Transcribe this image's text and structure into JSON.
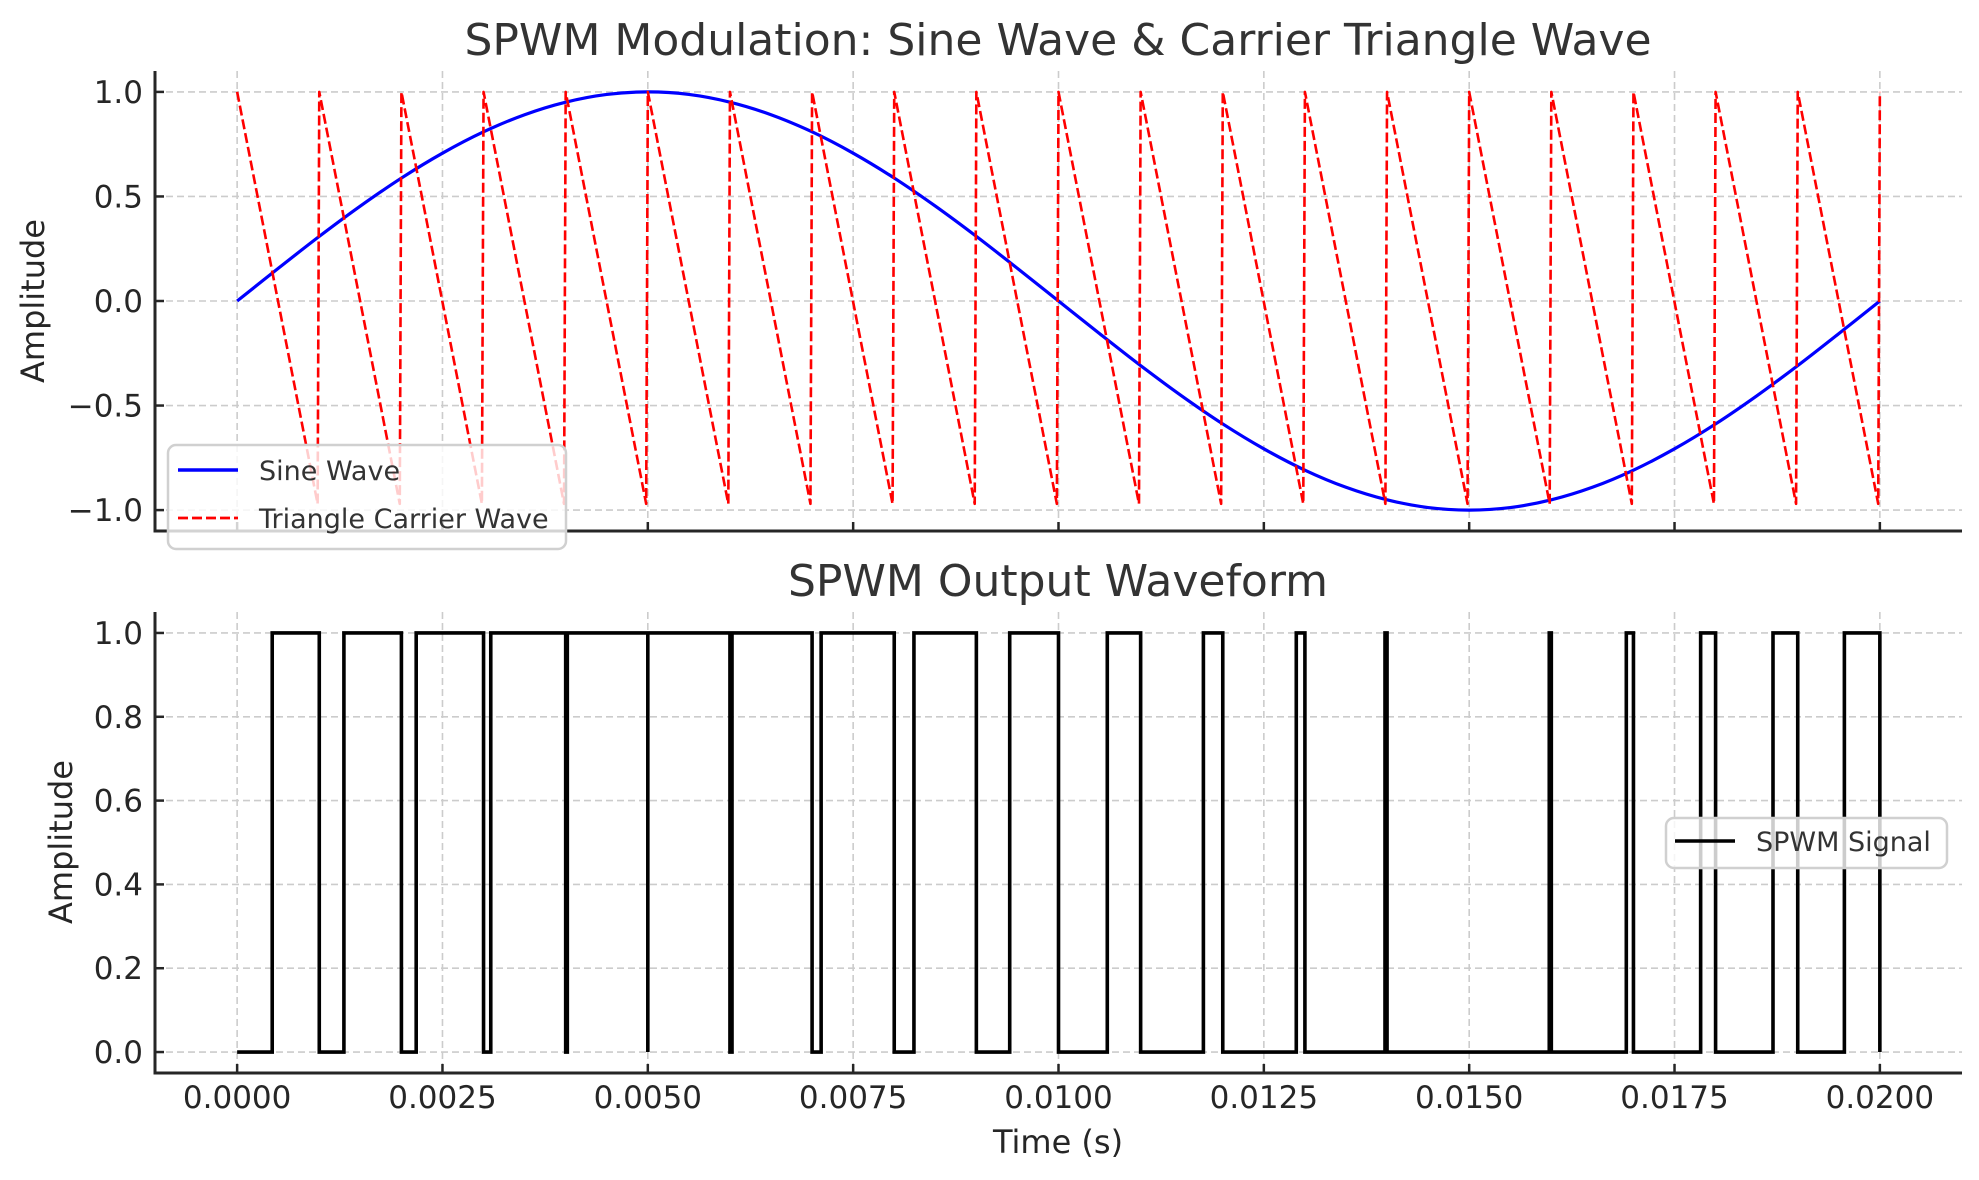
{
  "figure": {
    "background": "#ffffff"
  },
  "chart_data": [
    {
      "type": "line",
      "title": "SPWM Modulation: Sine Wave & Carrier Triangle Wave",
      "xlabel": "",
      "ylabel": "Amplitude",
      "xlim": [
        -0.001,
        0.021
      ],
      "ylim": [
        -1.1,
        1.1
      ],
      "grid": true,
      "legend_position": "lower-left",
      "xticks": [
        0.0,
        0.0025,
        0.005,
        0.0075,
        0.01,
        0.0125,
        0.015,
        0.0175,
        0.02
      ],
      "xtick_labels_visible": false,
      "yticks": [
        -1.0,
        -0.5,
        0.0,
        0.5,
        1.0
      ],
      "ytick_labels": [
        "−1.0",
        "−0.5",
        "0.0",
        "0.5",
        "1.0"
      ],
      "series": [
        {
          "name": "Sine Wave",
          "color": "#0000ff",
          "style": "solid",
          "x": [
            0.0,
            0.0005,
            0.001,
            0.0015,
            0.002,
            0.0025,
            0.003,
            0.0035,
            0.004,
            0.0045,
            0.005,
            0.0055,
            0.006,
            0.0065,
            0.007,
            0.0075,
            0.008,
            0.0085,
            0.009,
            0.0095,
            0.01,
            0.0105,
            0.011,
            0.0115,
            0.012,
            0.0125,
            0.013,
            0.0135,
            0.014,
            0.0145,
            0.015,
            0.0155,
            0.016,
            0.0165,
            0.017,
            0.0175,
            0.018,
            0.0185,
            0.019,
            0.0195,
            0.02
          ],
          "y": [
            0.0,
            0.156,
            0.309,
            0.454,
            0.588,
            0.707,
            0.809,
            0.891,
            0.951,
            0.988,
            1.0,
            0.988,
            0.951,
            0.891,
            0.809,
            0.707,
            0.588,
            0.454,
            0.309,
            0.156,
            0.0,
            -0.156,
            -0.309,
            -0.454,
            -0.588,
            -0.707,
            -0.809,
            -0.891,
            -0.951,
            -0.988,
            -1.0,
            -0.988,
            -0.951,
            -0.891,
            -0.809,
            -0.707,
            -0.588,
            -0.454,
            -0.309,
            -0.156,
            0.0
          ]
        },
        {
          "name": "Triangle Carrier Wave",
          "color": "#ff0000",
          "style": "dashed",
          "points": [
            [
              0.0,
              1.0
            ],
            [
              0.00098,
              -0.97
            ],
            [
              0.001,
              1.0
            ],
            [
              0.00198,
              -0.97
            ],
            [
              0.002,
              1.0
            ],
            [
              0.00298,
              -0.97
            ],
            [
              0.003,
              1.0
            ],
            [
              0.00398,
              -0.97
            ],
            [
              0.004,
              1.0
            ],
            [
              0.00498,
              -0.97
            ],
            [
              0.005,
              1.0
            ],
            [
              0.00598,
              -0.97
            ],
            [
              0.006,
              1.0
            ],
            [
              0.00698,
              -0.97
            ],
            [
              0.007,
              1.0
            ],
            [
              0.00798,
              -0.97
            ],
            [
              0.008,
              1.0
            ],
            [
              0.00898,
              -0.97
            ],
            [
              0.009,
              1.0
            ],
            [
              0.00998,
              -0.97
            ],
            [
              0.01,
              1.0
            ],
            [
              0.01098,
              -0.97
            ],
            [
              0.011,
              1.0
            ],
            [
              0.01198,
              -0.97
            ],
            [
              0.012,
              1.0
            ],
            [
              0.01298,
              -0.97
            ],
            [
              0.013,
              1.0
            ],
            [
              0.01398,
              -0.97
            ],
            [
              0.014,
              1.0
            ],
            [
              0.01498,
              -0.97
            ],
            [
              0.015,
              1.0
            ],
            [
              0.01598,
              -0.97
            ],
            [
              0.016,
              1.0
            ],
            [
              0.01698,
              -0.97
            ],
            [
              0.017,
              1.0
            ],
            [
              0.01798,
              -0.97
            ],
            [
              0.018,
              1.0
            ],
            [
              0.01898,
              -0.97
            ],
            [
              0.019,
              1.0
            ],
            [
              0.01998,
              -0.97
            ],
            [
              0.02,
              1.0
            ]
          ]
        }
      ]
    },
    {
      "type": "line",
      "title": "SPWM Output Waveform",
      "xlabel": "Time (s)",
      "ylabel": "Amplitude",
      "xlim": [
        -0.001,
        0.021
      ],
      "ylim": [
        -0.05,
        1.05
      ],
      "grid": true,
      "legend_position": "center-right",
      "xticks": [
        0.0,
        0.0025,
        0.005,
        0.0075,
        0.01,
        0.0125,
        0.015,
        0.0175,
        0.02
      ],
      "xtick_labels": [
        "0.0000",
        "0.0025",
        "0.0050",
        "0.0075",
        "0.0100",
        "0.0125",
        "0.0150",
        "0.0175",
        "0.0200"
      ],
      "yticks": [
        0.0,
        0.2,
        0.4,
        0.6,
        0.8,
        1.0
      ],
      "ytick_labels": [
        "0.0",
        "0.2",
        "0.4",
        "0.6",
        "0.8",
        "1.0"
      ],
      "series": [
        {
          "name": "SPWM Signal",
          "color": "#000000",
          "style": "solid",
          "x_range": [
            0.0,
            0.02
          ],
          "high_intervals": [
            [
              0.000427,
              0.001
            ],
            [
              0.0013,
              0.002
            ],
            [
              0.00218,
              0.003
            ],
            [
              0.003088,
              0.004
            ],
            [
              0.00402,
              0.005
            ],
            [
              0.005,
              0.006
            ],
            [
              0.006025,
              0.007
            ],
            [
              0.00711,
              0.008
            ],
            [
              0.00824,
              0.009
            ],
            [
              0.009406,
              0.01
            ],
            [
              0.010594,
              0.011
            ],
            [
              0.011764,
              0.012
            ],
            [
              0.012895,
              0.013
            ],
            [
              0.013975,
              0.014
            ],
            [
              0.015975,
              0.016
            ],
            [
              0.016913,
              0.017
            ],
            [
              0.017818,
              0.018
            ],
            [
              0.018699,
              0.019
            ],
            [
              0.019568,
              0.02
            ]
          ]
        }
      ]
    }
  ]
}
